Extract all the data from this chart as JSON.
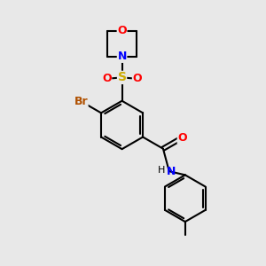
{
  "bg_color": "#e8e8e8",
  "bond_color": "#000000",
  "bond_width": 1.5,
  "atom_colors": {
    "O": "#ff0000",
    "N": "#0000ff",
    "S": "#ccaa00",
    "Br": "#b05000",
    "C": "#000000",
    "H": "#000000"
  },
  "font_size": 9,
  "fig_size": [
    3.0,
    3.0
  ],
  "dpi": 100,
  "scale": 1.0
}
